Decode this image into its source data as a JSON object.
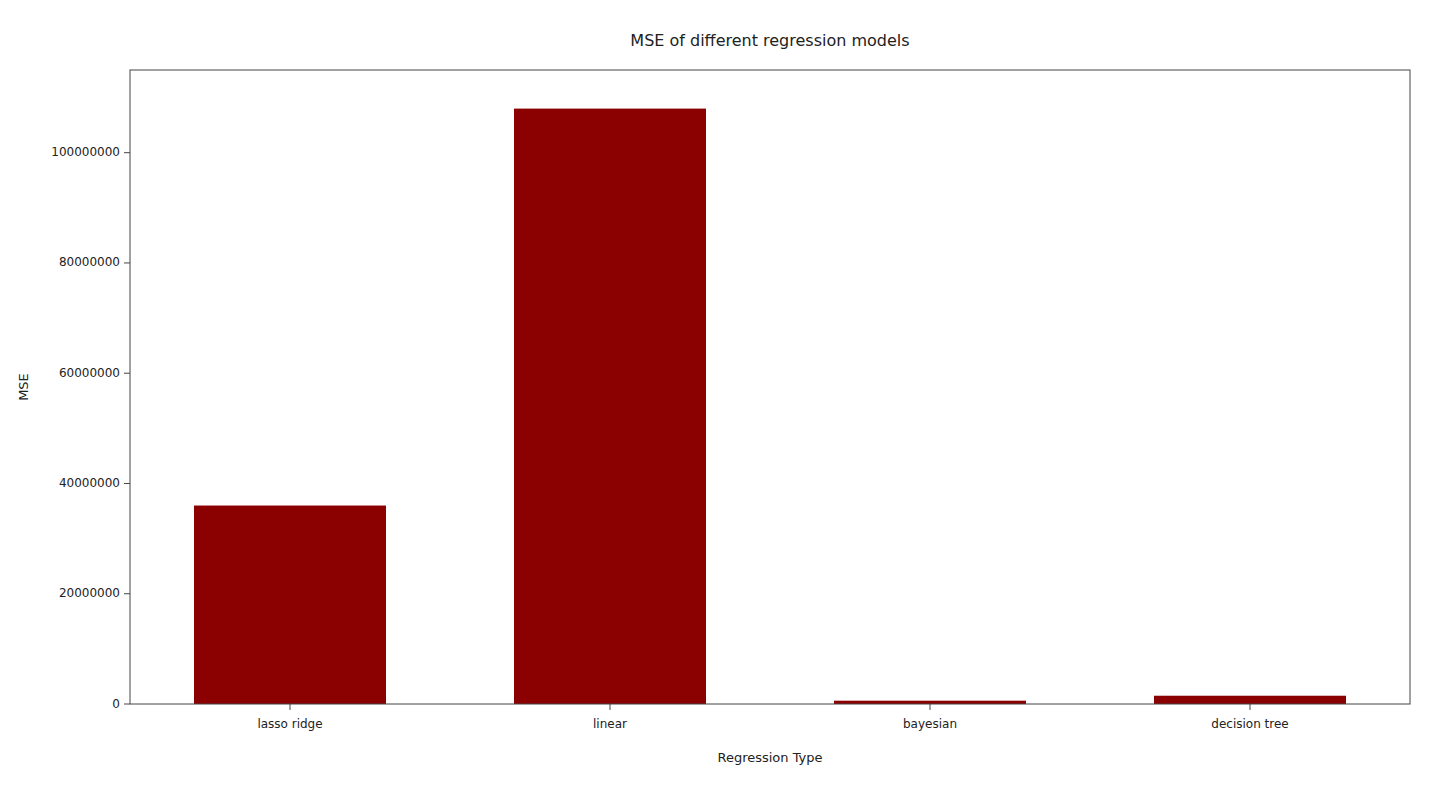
{
  "chart_data": {
    "type": "bar",
    "title": "MSE of different regression models",
    "xlabel": "Regression Type",
    "ylabel": "MSE",
    "categories": [
      "lasso ridge",
      "linear",
      "bayesian",
      "decision tree"
    ],
    "values": [
      36000000,
      108000000,
      600000,
      1500000
    ],
    "color": "#8B0000",
    "ylim": [
      0,
      115000000
    ],
    "yticks": [
      0,
      20000000,
      40000000,
      60000000,
      80000000,
      100000000
    ],
    "grid": false
  }
}
